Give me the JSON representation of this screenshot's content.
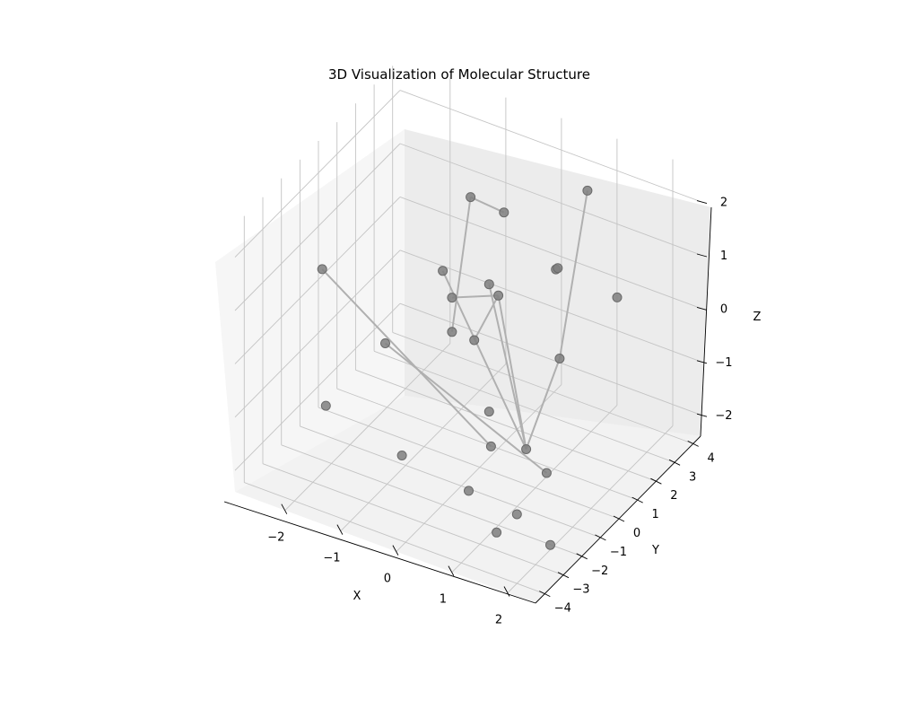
{
  "chart_data": {
    "type": "scatter3d",
    "title": "3D Visualization of Molecular Structure",
    "xlabel": "X",
    "ylabel": "Y",
    "zlabel": "Z",
    "xlim": [
      -2.9,
      2.5
    ],
    "ylim": [
      -4.5,
      4.4
    ],
    "zlim": [
      -2.4,
      2.6
    ],
    "xticks": [
      -2,
      -1,
      0,
      1,
      2
    ],
    "yticks": [
      -4,
      -3,
      -2,
      -1,
      0,
      1,
      2,
      3,
      4
    ],
    "zticks": [
      -2,
      -1,
      0,
      1,
      2
    ],
    "xtick_labels": [
      "−2",
      "−1",
      "0",
      "1",
      "2"
    ],
    "ytick_labels": [
      "−4",
      "−3",
      "−2",
      "−1",
      "0",
      "1",
      "2",
      "3",
      "4"
    ],
    "ztick_labels": [
      "−2",
      "−1",
      "0",
      "1",
      "2"
    ],
    "grid": true,
    "atoms": [
      {
        "x": 0.8,
        "y": 3.4,
        "z": 1.9
      },
      {
        "x": 1.2,
        "y": 0.5,
        "z": 1.6
      },
      {
        "x": 1.0,
        "y": 1.2,
        "z": 1.3
      },
      {
        "x": 1.4,
        "y": 3.2,
        "z": 0.2
      },
      {
        "x": 1.3,
        "y": 0.4,
        "z": 0.0
      },
      {
        "x": -0.5,
        "y": 2.8,
        "z": 1.2
      },
      {
        "x": -1.0,
        "y": 2.5,
        "z": 1.4
      },
      {
        "x": 0.1,
        "y": 0.2,
        "z": 1.0
      },
      {
        "x": 0.3,
        "y": 0.1,
        "z": 0.9
      },
      {
        "x": -1.1,
        "y": 1.3,
        "z": 0.4
      },
      {
        "x": -0.7,
        "y": 0.6,
        "z": 0.3
      },
      {
        "x": -2.5,
        "y": -1.0,
        "z": 0.7
      },
      {
        "x": -1.4,
        "y": -0.9,
        "z": -0.3
      },
      {
        "x": -0.6,
        "y": 0.3,
        "z": -0.2
      },
      {
        "x": -0.2,
        "y": 0.3,
        "z": -0.2
      },
      {
        "x": 0.3,
        "y": -0.4,
        "z": -1.1
      },
      {
        "x": 0.5,
        "y": -0.9,
        "z": -1.5
      },
      {
        "x": 1.0,
        "y": -0.5,
        "z": -1.5
      },
      {
        "x": 1.3,
        "y": -0.3,
        "z": -1.9
      },
      {
        "x": -2.2,
        "y": -1.7,
        "z": -1.5
      },
      {
        "x": -0.9,
        "y": -1.5,
        "z": -2.0
      },
      {
        "x": 0.3,
        "y": -1.5,
        "z": -2.2
      },
      {
        "x": 1.1,
        "y": -1.3,
        "z": -2.4
      },
      {
        "x": 1.0,
        "y": -2.1,
        "z": -2.5
      },
      {
        "x": 1.8,
        "y": -1.6,
        "z": -2.6
      }
    ],
    "bonds": [
      [
        0,
        4
      ],
      [
        4,
        17
      ],
      [
        8,
        17
      ],
      [
        8,
        10
      ],
      [
        8,
        14
      ],
      [
        7,
        17
      ],
      [
        6,
        13
      ],
      [
        11,
        16
      ],
      [
        12,
        18
      ],
      [
        5,
        6
      ],
      [
        9,
        17
      ]
    ]
  }
}
